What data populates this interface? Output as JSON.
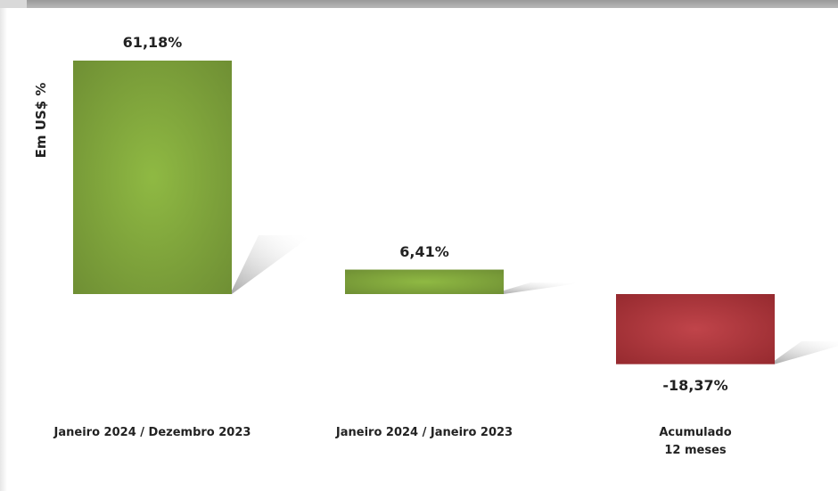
{
  "chart_data": {
    "type": "bar",
    "ylabel": "Em US$ %",
    "categories": [
      "Janeiro 2024 / Dezembro 2023",
      "Janeiro 2024 / Janeiro 2023",
      "Acumulado\n12 meses"
    ],
    "values": [
      61.18,
      6.41,
      -18.37
    ],
    "data_labels": [
      "61,18%",
      "6,41%",
      "-18,37%"
    ],
    "colors": {
      "positive": "#7fa23c",
      "negative": "#a83236"
    },
    "grid": false,
    "legend": "none"
  }
}
